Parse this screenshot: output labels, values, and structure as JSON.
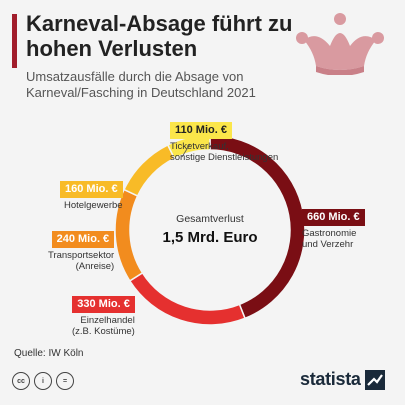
{
  "title": "Karneval-Absage führt zu hohen Verlusten",
  "subtitle": "Umsatzausfälle durch die Absage von Karneval/Fasching in Deutschland 2021",
  "center": {
    "caption": "Gesamtverlust",
    "value": "1,5 Mrd. Euro"
  },
  "source": "Quelle: IW Köln",
  "brand": "statista",
  "cc_icons": [
    "cc",
    "by",
    "nd"
  ],
  "colors": {
    "accent": "#a11d2b",
    "gastro": "#7a0e14",
    "einzel": "#e5302f",
    "transport": "#f28c1e",
    "hotel": "#f8bb27",
    "ticket": "#fbe64a"
  },
  "chart_data": {
    "type": "pie",
    "unit": "Mio. €",
    "series": [
      {
        "name": "Gastronomie und Verzehr",
        "value": 660,
        "label": "660 Mio. €",
        "color": "#7a0e14"
      },
      {
        "name": "Einzelhandel (z.B. Kostüme)",
        "value": 330,
        "label": "330 Mio. €",
        "color": "#e5302f"
      },
      {
        "name": "Transportsektor (Anreise)",
        "value": 240,
        "label": "240 Mio. €",
        "color": "#f28c1e"
      },
      {
        "name": "Hotelgewerbe",
        "value": 160,
        "label": "160 Mio. €",
        "color": "#f8bb27"
      },
      {
        "name": "Ticketverkauf, sonstige Dienstleistungen",
        "value": 110,
        "label": "110 Mio. €",
        "color": "#fbe64a"
      }
    ]
  },
  "labels": {
    "gastro": {
      "badge": "660 Mio. €",
      "line1": "Gastronomie",
      "line2": "und Verzehr"
    },
    "einzel": {
      "badge": "330 Mio. €",
      "line1": "Einzelhandel",
      "line2": "(z.B. Kostüme)"
    },
    "transport": {
      "badge": "240 Mio. €",
      "line1": "Transportsektor",
      "line2": "(Anreise)"
    },
    "hotel": {
      "badge": "160 Mio. €",
      "line1": "Hotelgewerbe"
    },
    "ticket": {
      "badge": "110 Mio. €",
      "line1": "Ticketverkauf,",
      "line2": "sonstige Dienstleistungen"
    }
  }
}
